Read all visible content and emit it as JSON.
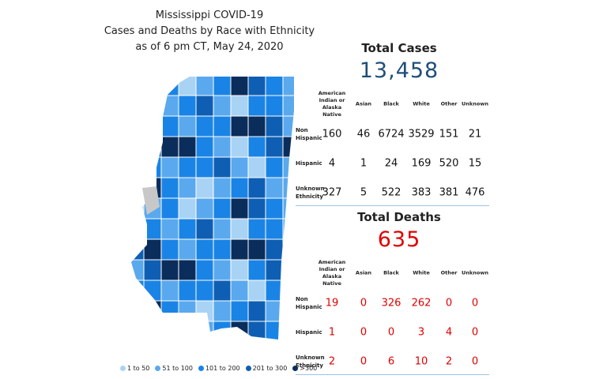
{
  "title": [
    "Mississippi COVID-19",
    "Cases and Deaths by Race with Ethnicity",
    "as of 6 pm CT, May 24, 2020"
  ],
  "cases": {
    "heading": "Total Cases",
    "total": "13,458",
    "columns": [
      "American Indian or Alaska Native",
      "Asian",
      "Black",
      "White",
      "Other",
      "Unknown"
    ],
    "rows": [
      {
        "label": "Non Hispanic",
        "values": [
          160,
          46,
          6724,
          3529,
          151,
          21
        ]
      },
      {
        "label": "Hispanic",
        "values": [
          4,
          1,
          24,
          169,
          520,
          15
        ]
      },
      {
        "label": "Unknown Ethnicity",
        "values": [
          327,
          5,
          522,
          383,
          381,
          476
        ]
      }
    ]
  },
  "deaths": {
    "heading": "Total Deaths",
    "total": "635",
    "columns": [
      "American Indian or Alaska Native",
      "Asian",
      "Black",
      "White",
      "Other",
      "Unknown"
    ],
    "rows": [
      {
        "label": "Non Hispanic",
        "values": [
          19,
          0,
          326,
          262,
          0,
          0
        ]
      },
      {
        "label": "Hispanic",
        "values": [
          1,
          0,
          0,
          3,
          4,
          0
        ]
      },
      {
        "label": "Unknown Ethnicity",
        "values": [
          2,
          0,
          6,
          10,
          2,
          0
        ]
      }
    ]
  },
  "legend": [
    {
      "label": "1 to 50",
      "color": "#a9d3f5"
    },
    {
      "label": "51 to 100",
      "color": "#5aa9ee"
    },
    {
      "label": "101 to 200",
      "color": "#1a84e6"
    },
    {
      "label": "201 to 300",
      "color": "#0e5fb3"
    },
    {
      "label": ">300",
      "color": "#0b2d5b"
    }
  ]
}
